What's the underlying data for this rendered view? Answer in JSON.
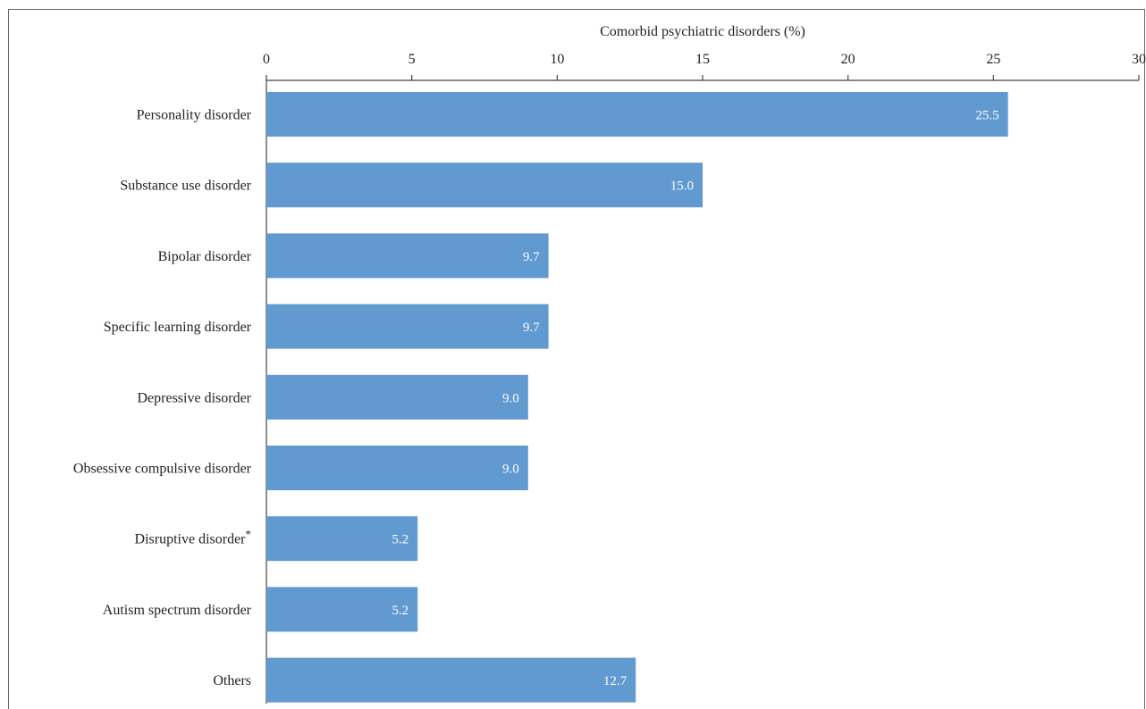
{
  "chart_data": {
    "type": "bar",
    "orientation": "horizontal",
    "xlabel": "Comorbid psychiatric disorders (%)",
    "xlim": [
      0,
      30
    ],
    "xticks": [
      0,
      5,
      10,
      15,
      20,
      25,
      30
    ],
    "categories": [
      "Personality disorder",
      "Substance use disorder",
      "Bipolar disorder",
      "Specific learning disorder",
      "Depressive disorder",
      "Obsessive compulsive disorder",
      "Disruptive disorder*",
      "Autism spectrum disorder",
      "Others"
    ],
    "values": [
      25.5,
      15.0,
      9.7,
      9.7,
      9.0,
      9.0,
      5.2,
      5.2,
      12.7
    ],
    "value_labels": [
      "25.5",
      "15.0",
      "9.7",
      "9.7",
      "9.0",
      "9.0",
      "5.2",
      "5.2",
      "12.7"
    ],
    "bar_color": "#6199d1",
    "grid": false
  }
}
